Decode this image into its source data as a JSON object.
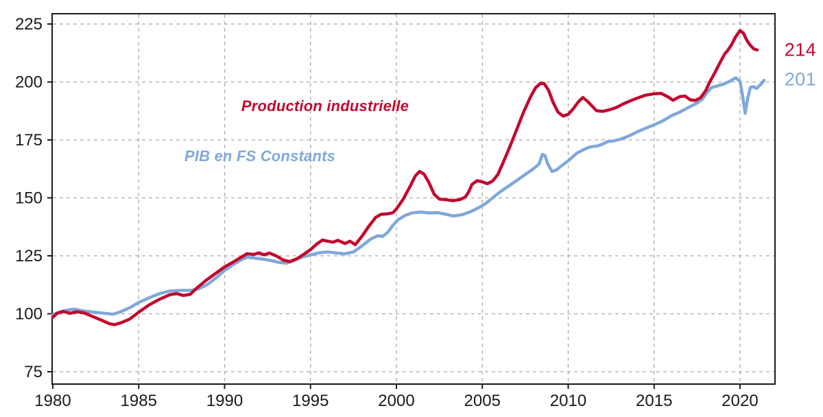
{
  "chart_data": {
    "type": "line",
    "title": "",
    "xlabel": "",
    "ylabel": "",
    "grid": true,
    "grid_style": "dashed",
    "grid_color": "#a9a9a9",
    "frame_color": "#1a1a1a",
    "background": "#ffffff",
    "legend_position": "inline-annotations",
    "x_axis": {
      "range": [
        1980,
        2022
      ],
      "ticks": [
        1980,
        1985,
        1990,
        1995,
        2000,
        2005,
        2010,
        2015,
        2020
      ]
    },
    "y_axis": {
      "range": [
        70,
        229.5
      ],
      "ticks": [
        75,
        100,
        125,
        150,
        175,
        200,
        225
      ]
    },
    "annotations": [
      {
        "text": "Production industrielle",
        "color": "#c2092e"
      },
      {
        "text": "PIB en FS Constants",
        "color": "#7fa8da"
      }
    ],
    "end_labels": [
      {
        "text": "214",
        "color": "#c2092e"
      },
      {
        "text": "201",
        "color": "#7fa8da"
      }
    ],
    "series": [
      {
        "name": "PIB en FS Constants",
        "color": "#7fa8da",
        "end_value": 201,
        "points": [
          [
            1980.0,
            99.7
          ],
          [
            1980.5,
            101.0
          ],
          [
            1981.0,
            101.8
          ],
          [
            1981.3,
            102.0
          ],
          [
            1981.8,
            101.2
          ],
          [
            1982.4,
            100.7
          ],
          [
            1983.0,
            100.2
          ],
          [
            1983.5,
            99.8
          ],
          [
            1984.0,
            101.0
          ],
          [
            1984.5,
            102.7
          ],
          [
            1985.0,
            104.9
          ],
          [
            1985.7,
            107.2
          ],
          [
            1986.3,
            108.9
          ],
          [
            1986.8,
            109.8
          ],
          [
            1987.4,
            110.1
          ],
          [
            1988.0,
            110.1
          ],
          [
            1988.5,
            110.8
          ],
          [
            1989.0,
            112.6
          ],
          [
            1989.5,
            115.5
          ],
          [
            1990.0,
            118.7
          ],
          [
            1990.5,
            121.2
          ],
          [
            1991.0,
            123.4
          ],
          [
            1991.3,
            124.4
          ],
          [
            1991.8,
            124.0
          ],
          [
            1992.3,
            123.5
          ],
          [
            1992.8,
            122.8
          ],
          [
            1993.2,
            122.1
          ],
          [
            1993.6,
            121.8
          ],
          [
            1994.0,
            122.9
          ],
          [
            1994.5,
            124.4
          ],
          [
            1995.0,
            125.4
          ],
          [
            1995.5,
            126.3
          ],
          [
            1996.0,
            126.7
          ],
          [
            1996.5,
            126.2
          ],
          [
            1997.0,
            125.9
          ],
          [
            1997.5,
            126.7
          ],
          [
            1998.0,
            129.3
          ],
          [
            1998.5,
            132.2
          ],
          [
            1998.9,
            133.6
          ],
          [
            1999.2,
            133.4
          ],
          [
            1999.5,
            135.2
          ],
          [
            1999.8,
            138.2
          ],
          [
            2000.1,
            140.6
          ],
          [
            2000.5,
            142.4
          ],
          [
            2000.9,
            143.5
          ],
          [
            2001.4,
            143.9
          ],
          [
            2001.9,
            143.5
          ],
          [
            2002.4,
            143.6
          ],
          [
            2002.9,
            142.9
          ],
          [
            2003.3,
            142.2
          ],
          [
            2003.8,
            142.7
          ],
          [
            2004.3,
            144.0
          ],
          [
            2004.8,
            145.8
          ],
          [
            2005.2,
            147.6
          ],
          [
            2005.6,
            150.0
          ],
          [
            2006.0,
            152.4
          ],
          [
            2006.5,
            154.9
          ],
          [
            2007.0,
            157.5
          ],
          [
            2007.5,
            160.1
          ],
          [
            2008.0,
            162.7
          ],
          [
            2008.3,
            164.6
          ],
          [
            2008.5,
            168.8
          ],
          [
            2008.65,
            168.2
          ],
          [
            2008.8,
            164.8
          ],
          [
            2009.05,
            161.4
          ],
          [
            2009.3,
            162.0
          ],
          [
            2009.6,
            163.8
          ],
          [
            2010.0,
            166.0
          ],
          [
            2010.5,
            169.3
          ],
          [
            2010.9,
            170.8
          ],
          [
            2011.2,
            171.8
          ],
          [
            2011.45,
            172.2
          ],
          [
            2011.7,
            172.4
          ],
          [
            2012.0,
            173.2
          ],
          [
            2012.3,
            174.3
          ],
          [
            2012.6,
            174.5
          ],
          [
            2013.0,
            175.2
          ],
          [
            2013.5,
            176.6
          ],
          [
            2014.0,
            178.4
          ],
          [
            2014.5,
            180.0
          ],
          [
            2015.0,
            181.5
          ],
          [
            2015.5,
            183.2
          ],
          [
            2016.0,
            185.4
          ],
          [
            2016.5,
            187.0
          ],
          [
            2017.0,
            189.0
          ],
          [
            2017.5,
            190.9
          ],
          [
            2017.8,
            192.5
          ],
          [
            2018.1,
            195.6
          ],
          [
            2018.35,
            197.6
          ],
          [
            2018.7,
            198.3
          ],
          [
            2019.0,
            199.0
          ],
          [
            2019.4,
            200.3
          ],
          [
            2019.75,
            201.8
          ],
          [
            2020.0,
            200.3
          ],
          [
            2020.15,
            194.0
          ],
          [
            2020.3,
            186.5
          ],
          [
            2020.45,
            193.0
          ],
          [
            2020.6,
            197.6
          ],
          [
            2020.8,
            198.0
          ],
          [
            2020.95,
            197.2
          ],
          [
            2021.2,
            198.9
          ],
          [
            2021.4,
            200.7
          ]
        ]
      },
      {
        "name": "Production industrielle",
        "color": "#c2092e",
        "end_value": 214,
        "points": [
          [
            1980.0,
            98.5
          ],
          [
            1980.25,
            100.2
          ],
          [
            1980.6,
            101.0
          ],
          [
            1981.0,
            100.2
          ],
          [
            1981.4,
            100.9
          ],
          [
            1981.8,
            100.4
          ],
          [
            1982.2,
            99.2
          ],
          [
            1982.8,
            97.3
          ],
          [
            1983.3,
            95.7
          ],
          [
            1983.6,
            95.3
          ],
          [
            1984.0,
            96.2
          ],
          [
            1984.5,
            97.8
          ],
          [
            1985.0,
            100.7
          ],
          [
            1985.6,
            103.8
          ],
          [
            1986.2,
            106.2
          ],
          [
            1986.8,
            108.2
          ],
          [
            1987.2,
            108.7
          ],
          [
            1987.6,
            107.9
          ],
          [
            1988.0,
            108.4
          ],
          [
            1988.4,
            111.2
          ],
          [
            1988.9,
            114.3
          ],
          [
            1989.4,
            117.0
          ],
          [
            1990.0,
            120.2
          ],
          [
            1990.5,
            122.3
          ],
          [
            1991.0,
            124.6
          ],
          [
            1991.3,
            125.9
          ],
          [
            1991.7,
            125.6
          ],
          [
            1992.0,
            126.3
          ],
          [
            1992.3,
            125.4
          ],
          [
            1992.6,
            126.2
          ],
          [
            1993.0,
            125.0
          ],
          [
            1993.4,
            123.2
          ],
          [
            1993.8,
            122.5
          ],
          [
            1994.2,
            123.7
          ],
          [
            1994.6,
            125.6
          ],
          [
            1995.0,
            127.7
          ],
          [
            1995.4,
            130.3
          ],
          [
            1995.7,
            131.8
          ],
          [
            1996.0,
            131.3
          ],
          [
            1996.3,
            130.9
          ],
          [
            1996.6,
            131.7
          ],
          [
            1997.0,
            130.3
          ],
          [
            1997.3,
            131.3
          ],
          [
            1997.6,
            129.8
          ],
          [
            1998.0,
            133.5
          ],
          [
            1998.4,
            137.8
          ],
          [
            1998.8,
            141.6
          ],
          [
            1999.1,
            142.9
          ],
          [
            1999.5,
            143.1
          ],
          [
            1999.8,
            143.6
          ],
          [
            2000.0,
            145.2
          ],
          [
            2000.4,
            149.5
          ],
          [
            2000.8,
            155.0
          ],
          [
            2001.1,
            159.5
          ],
          [
            2001.35,
            161.4
          ],
          [
            2001.6,
            160.3
          ],
          [
            2001.9,
            156.5
          ],
          [
            2002.2,
            151.5
          ],
          [
            2002.5,
            149.5
          ],
          [
            2002.9,
            149.2
          ],
          [
            2003.3,
            148.8
          ],
          [
            2003.7,
            149.3
          ],
          [
            2004.0,
            150.3
          ],
          [
            2004.2,
            152.5
          ],
          [
            2004.4,
            155.8
          ],
          [
            2004.7,
            157.4
          ],
          [
            2005.0,
            156.9
          ],
          [
            2005.3,
            156.1
          ],
          [
            2005.6,
            157.3
          ],
          [
            2005.9,
            160.0
          ],
          [
            2006.2,
            165.0
          ],
          [
            2006.6,
            172.0
          ],
          [
            2007.0,
            179.5
          ],
          [
            2007.4,
            187.0
          ],
          [
            2007.8,
            193.5
          ],
          [
            2008.1,
            197.5
          ],
          [
            2008.4,
            199.5
          ],
          [
            2008.6,
            199.3
          ],
          [
            2008.85,
            196.5
          ],
          [
            2009.1,
            191.5
          ],
          [
            2009.4,
            187.0
          ],
          [
            2009.7,
            185.3
          ],
          [
            2010.0,
            186.0
          ],
          [
            2010.3,
            188.5
          ],
          [
            2010.6,
            191.5
          ],
          [
            2010.85,
            193.3
          ],
          [
            2011.1,
            191.8
          ],
          [
            2011.4,
            189.5
          ],
          [
            2011.65,
            187.6
          ],
          [
            2012.0,
            187.3
          ],
          [
            2012.4,
            188.0
          ],
          [
            2012.8,
            189.0
          ],
          [
            2013.2,
            190.5
          ],
          [
            2013.6,
            191.8
          ],
          [
            2014.0,
            193.0
          ],
          [
            2014.5,
            194.3
          ],
          [
            2015.0,
            194.9
          ],
          [
            2015.4,
            195.1
          ],
          [
            2015.8,
            193.6
          ],
          [
            2016.1,
            192.1
          ],
          [
            2016.5,
            193.7
          ],
          [
            2016.8,
            193.9
          ],
          [
            2017.1,
            192.3
          ],
          [
            2017.4,
            192.0
          ],
          [
            2017.7,
            193.2
          ],
          [
            2018.0,
            196.2
          ],
          [
            2018.25,
            200.2
          ],
          [
            2018.5,
            203.5
          ],
          [
            2018.8,
            207.8
          ],
          [
            2019.1,
            212.0
          ],
          [
            2019.3,
            213.8
          ],
          [
            2019.5,
            216.0
          ],
          [
            2019.75,
            219.5
          ],
          [
            2020.0,
            222.2
          ],
          [
            2020.2,
            221.0
          ],
          [
            2020.4,
            218.0
          ],
          [
            2020.6,
            215.8
          ],
          [
            2020.8,
            214.3
          ],
          [
            2021.0,
            213.8
          ]
        ]
      }
    ]
  }
}
